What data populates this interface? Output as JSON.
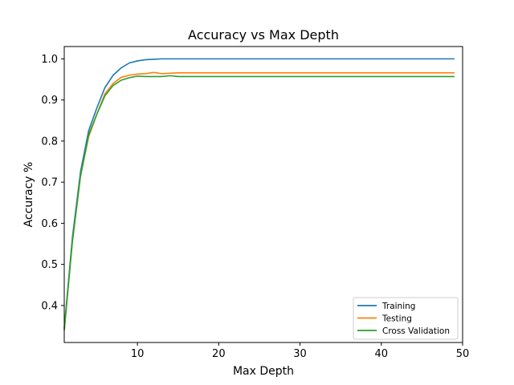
{
  "chart_data": {
    "type": "line",
    "title": "Accuracy vs Max Depth",
    "xlabel": "Max Depth",
    "ylabel": "Accuracy %",
    "xlim": [
      1,
      50
    ],
    "ylim": [
      0.31,
      1.03
    ],
    "xticks": [
      10,
      20,
      30,
      40,
      50
    ],
    "yticks": [
      0.4,
      0.5,
      0.6,
      0.7,
      0.8,
      0.9,
      1.0
    ],
    "ytick_labels": [
      "0.4",
      "0.5",
      "0.6",
      "0.7",
      "0.8",
      "0.9",
      "1.0"
    ],
    "grid": false,
    "legend_position": "lower-right",
    "x": [
      1,
      2,
      3,
      4,
      5,
      6,
      7,
      8,
      9,
      10,
      11,
      12,
      13,
      14,
      15,
      16,
      17,
      18,
      19,
      20,
      21,
      22,
      23,
      24,
      25,
      26,
      27,
      28,
      29,
      30,
      31,
      32,
      33,
      34,
      35,
      36,
      37,
      38,
      39,
      40,
      41,
      42,
      43,
      44,
      45,
      46,
      47,
      48,
      49
    ],
    "series": [
      {
        "name": "Training",
        "color": "#1f77b4",
        "values": [
          0.345,
          0.565,
          0.725,
          0.825,
          0.88,
          0.93,
          0.96,
          0.978,
          0.99,
          0.995,
          0.998,
          0.999,
          1.0,
          1.0,
          1.0,
          1.0,
          1.0,
          1.0,
          1.0,
          1.0,
          1.0,
          1.0,
          1.0,
          1.0,
          1.0,
          1.0,
          1.0,
          1.0,
          1.0,
          1.0,
          1.0,
          1.0,
          1.0,
          1.0,
          1.0,
          1.0,
          1.0,
          1.0,
          1.0,
          1.0,
          1.0,
          1.0,
          1.0,
          1.0,
          1.0,
          1.0,
          1.0,
          1.0,
          1.0
        ]
      },
      {
        "name": "Testing",
        "color": "#ff7f0e",
        "values": [
          0.34,
          0.555,
          0.715,
          0.81,
          0.865,
          0.915,
          0.94,
          0.955,
          0.96,
          0.963,
          0.964,
          0.967,
          0.964,
          0.965,
          0.966,
          0.966,
          0.966,
          0.966,
          0.966,
          0.966,
          0.966,
          0.966,
          0.966,
          0.966,
          0.966,
          0.966,
          0.966,
          0.966,
          0.966,
          0.966,
          0.966,
          0.966,
          0.966,
          0.966,
          0.966,
          0.966,
          0.966,
          0.966,
          0.966,
          0.966,
          0.966,
          0.966,
          0.966,
          0.966,
          0.966,
          0.966,
          0.966,
          0.966,
          0.966
        ]
      },
      {
        "name": "Cross Validation",
        "color": "#2ca02c",
        "values": [
          0.34,
          0.555,
          0.715,
          0.815,
          0.865,
          0.91,
          0.935,
          0.948,
          0.954,
          0.958,
          0.957,
          0.957,
          0.957,
          0.959,
          0.957,
          0.957,
          0.957,
          0.957,
          0.957,
          0.957,
          0.957,
          0.957,
          0.957,
          0.957,
          0.957,
          0.957,
          0.957,
          0.957,
          0.957,
          0.957,
          0.957,
          0.957,
          0.957,
          0.957,
          0.957,
          0.957,
          0.957,
          0.957,
          0.957,
          0.957,
          0.957,
          0.957,
          0.957,
          0.957,
          0.957,
          0.957,
          0.957,
          0.957,
          0.957
        ]
      }
    ]
  }
}
